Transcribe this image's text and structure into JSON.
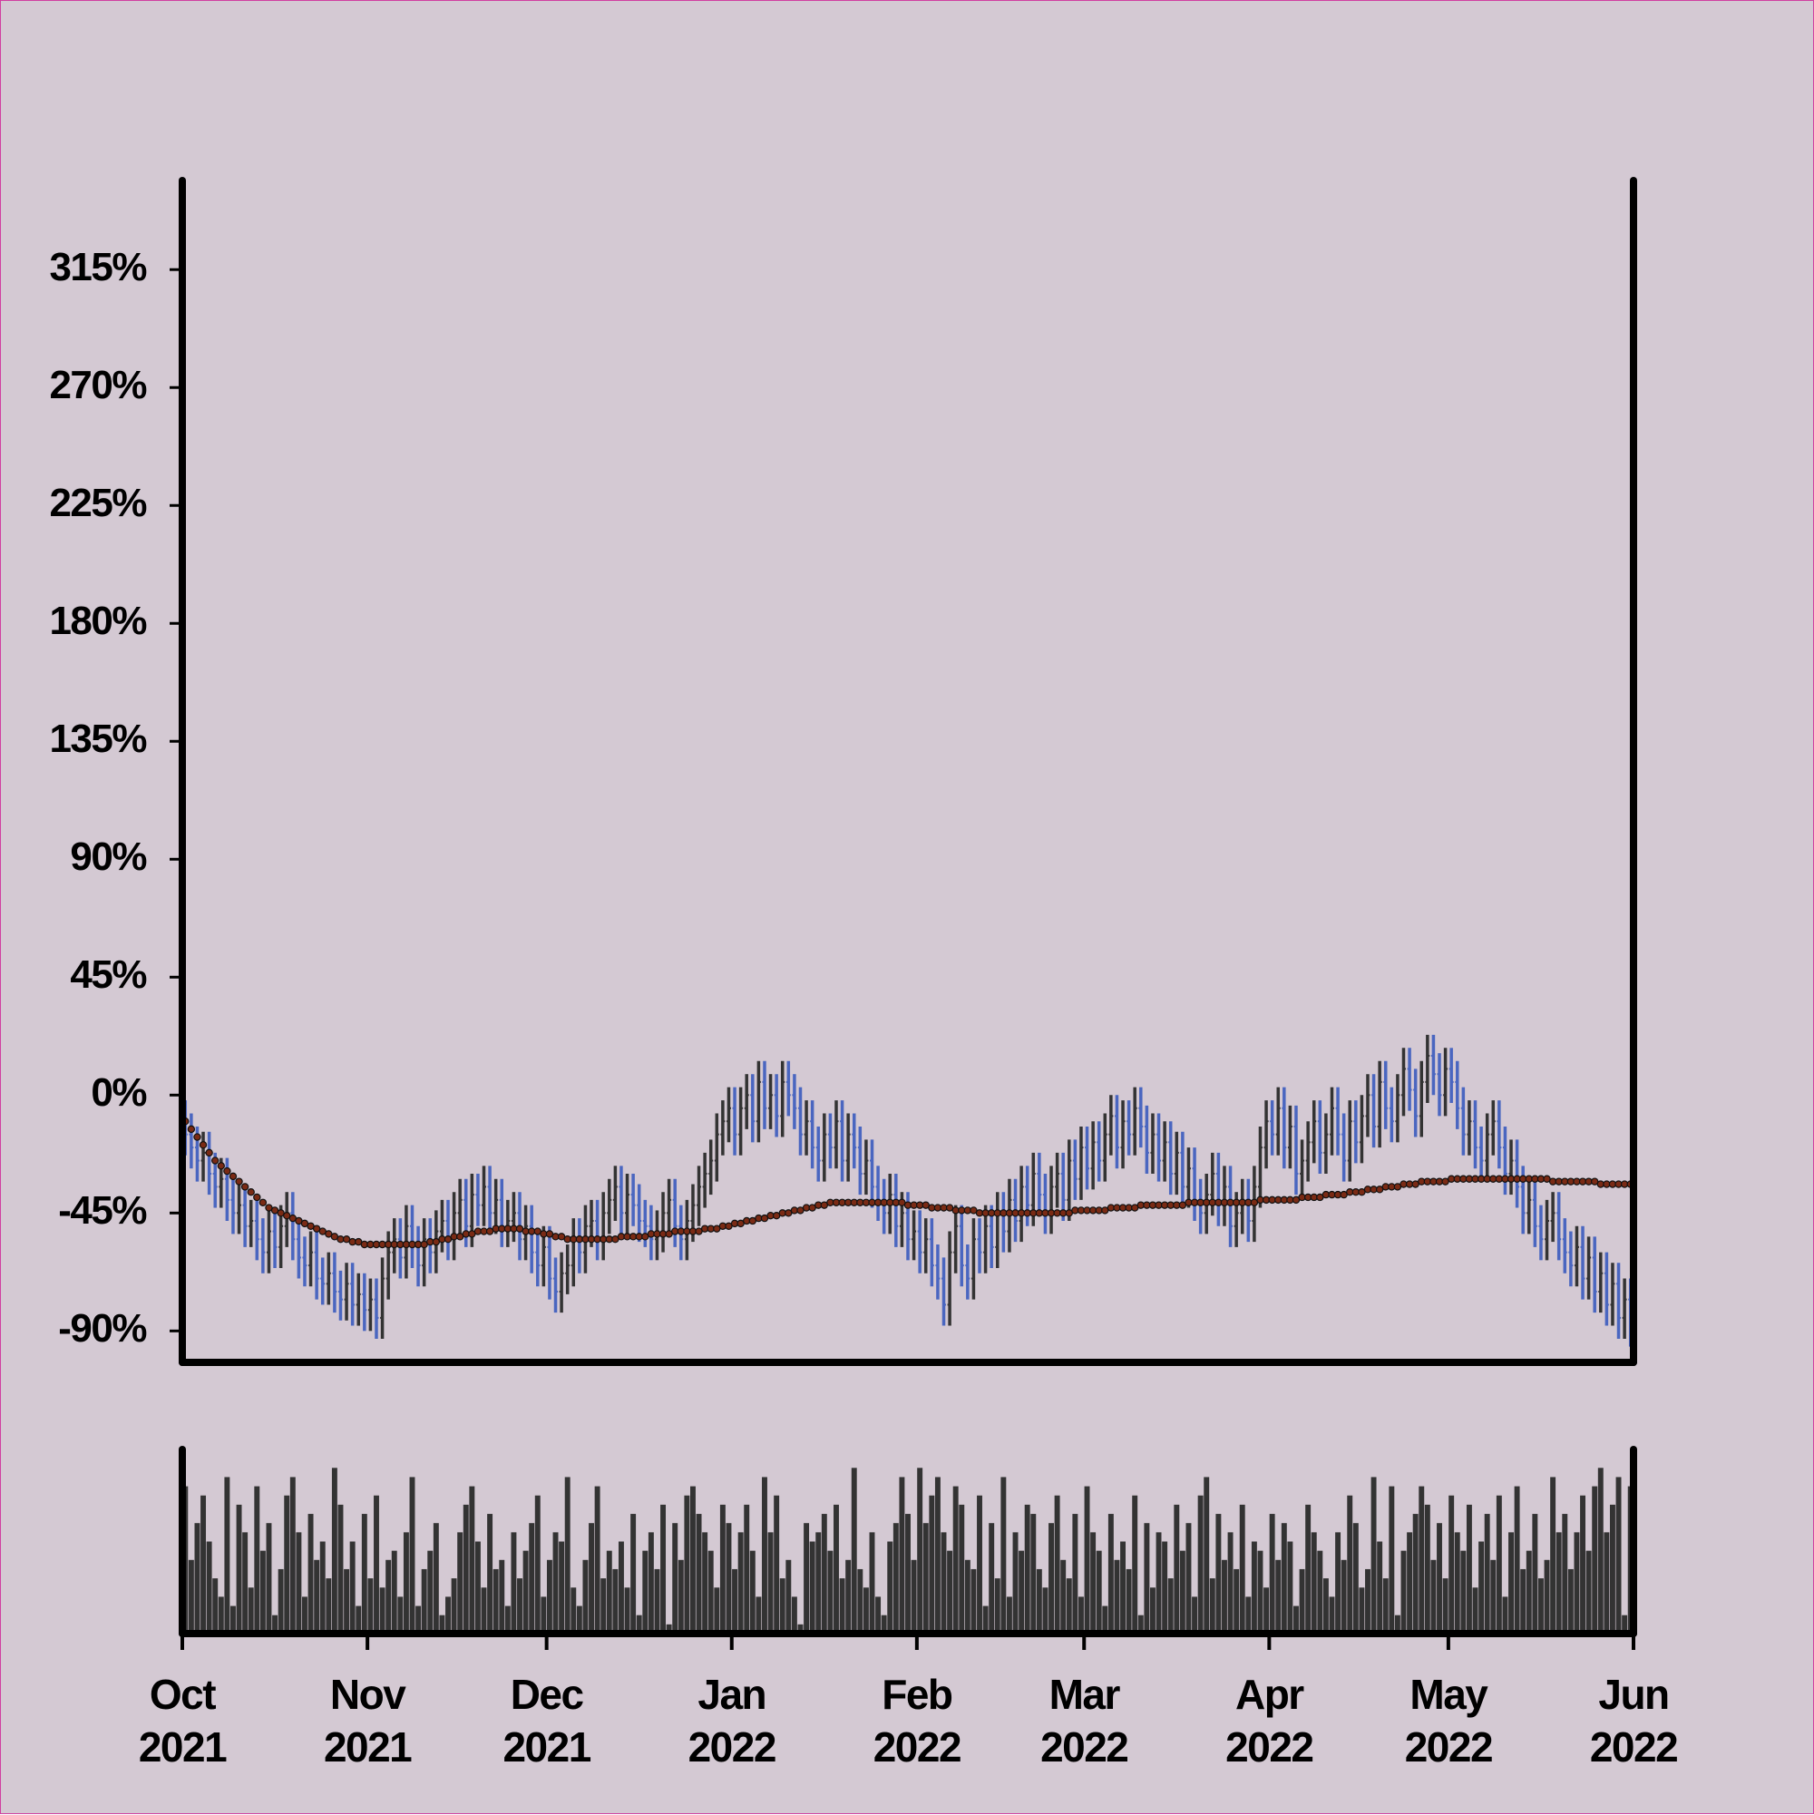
{
  "chart_data": {
    "type": "ohlc",
    "open": [
      -10,
      -15,
      -20,
      -25,
      -22,
      -30,
      -35,
      -32,
      -40,
      -45,
      -42,
      -50,
      -48,
      -55,
      -60,
      -52,
      -58,
      -50,
      -45,
      -55,
      -62,
      -65,
      -60,
      -70,
      -72,
      -68,
      -75,
      -78,
      -72,
      -80,
      -76,
      -82,
      -78,
      -85,
      -70,
      -60,
      -55,
      -62,
      -50,
      -58,
      -65,
      -55,
      -60,
      -52,
      -48,
      -55,
      -45,
      -40,
      -50,
      -38,
      -42,
      -35,
      -45,
      -40,
      -50,
      -48,
      -45,
      -55,
      -50,
      -60,
      -65,
      -58,
      -70,
      -75,
      -68,
      -65,
      -55,
      -60,
      -50,
      -48,
      -55,
      -45,
      -40,
      -35,
      -45,
      -38,
      -42,
      -48,
      -50,
      -55,
      -52,
      -45,
      -40,
      -50,
      -55,
      -48,
      -42,
      -35,
      -30,
      -25,
      -15,
      -10,
      -5,
      -15,
      -5,
      0,
      -10,
      5,
      -5,
      0,
      -8,
      5,
      0,
      -5,
      -15,
      -10,
      -20,
      -25,
      -15,
      -20,
      -10,
      -25,
      -15,
      -20,
      -30,
      -25,
      -35,
      -40,
      -45,
      -38,
      -50,
      -45,
      -55,
      -52,
      -60,
      -55,
      -65,
      -70,
      -80,
      -60,
      -50,
      -65,
      -70,
      -55,
      -60,
      -50,
      -58,
      -45,
      -52,
      -40,
      -48,
      -35,
      -42,
      -30,
      -38,
      -45,
      -35,
      -30,
      -40,
      -25,
      -32,
      -20,
      -28,
      -18,
      -25,
      -15,
      -8,
      -20,
      -10,
      -15,
      -5,
      -12,
      -22,
      -15,
      -25,
      -18,
      -30,
      -22,
      -35,
      -28,
      -40,
      -45,
      -38,
      -30,
      -42,
      -35,
      -50,
      -45,
      -40,
      -48,
      -35,
      -20,
      -10,
      -15,
      -5,
      -20,
      -12,
      -30,
      -25,
      -18,
      -10,
      -22,
      -15,
      -5,
      -15,
      -25,
      -10,
      -18,
      -8,
      0,
      -12,
      5,
      -5,
      -10,
      0,
      10,
      2,
      -8,
      5,
      15,
      8,
      0,
      10,
      5,
      -5,
      -15,
      -10,
      -20,
      -25,
      -15,
      -10,
      -20,
      -30,
      -25,
      -35,
      -45,
      -40,
      -50,
      -55,
      -48,
      -45,
      -55,
      -60,
      -65,
      -58,
      -70,
      -62,
      -75,
      -68,
      -80,
      -72,
      -85,
      -78
    ],
    "high": [
      -2,
      -7,
      -12,
      -14,
      -14,
      -22,
      -24,
      -24,
      -32,
      -34,
      -34,
      -40,
      -40,
      -47,
      -44,
      -44,
      -42,
      -37,
      -37,
      -47,
      -54,
      -52,
      -52,
      -62,
      -60,
      -60,
      -67,
      -64,
      -64,
      -68,
      -68,
      -70,
      -70,
      -62,
      -52,
      -47,
      -47,
      -42,
      -42,
      -50,
      -47,
      -47,
      -44,
      -40,
      -40,
      -37,
      -32,
      -32,
      -30,
      -30,
      -27,
      -27,
      -32,
      -32,
      -40,
      -37,
      -37,
      -42,
      -42,
      -52,
      -50,
      -50,
      -62,
      -60,
      -57,
      -47,
      -47,
      -42,
      -40,
      -40,
      -37,
      -32,
      -27,
      -27,
      -30,
      -30,
      -34,
      -40,
      -42,
      -44,
      -37,
      -32,
      -32,
      -42,
      -40,
      -34,
      -27,
      -22,
      -17,
      -7,
      -2,
      3,
      3,
      3,
      8,
      8,
      13,
      13,
      8,
      8,
      13,
      13,
      8,
      3,
      -2,
      -2,
      -12,
      -7,
      -7,
      -2,
      -2,
      -7,
      -7,
      -12,
      -17,
      -17,
      -27,
      -32,
      -30,
      -30,
      -37,
      -37,
      -44,
      -44,
      -47,
      -47,
      -57,
      -62,
      -52,
      -42,
      -42,
      -57,
      -47,
      -47,
      -42,
      -42,
      -37,
      -37,
      -32,
      -32,
      -27,
      -27,
      -22,
      -22,
      -30,
      -27,
      -22,
      -22,
      -17,
      -17,
      -12,
      -12,
      -10,
      -10,
      -7,
      0,
      0,
      -2,
      -2,
      3,
      3,
      -4,
      -7,
      -7,
      -10,
      -10,
      -14,
      -14,
      -20,
      -20,
      -32,
      -30,
      -22,
      -22,
      -27,
      -27,
      -37,
      -32,
      -32,
      -27,
      -12,
      -2,
      -2,
      3,
      3,
      -4,
      -4,
      -17,
      -10,
      -2,
      -2,
      -7,
      3,
      3,
      -7,
      -2,
      -2,
      0,
      8,
      8,
      13,
      13,
      3,
      8,
      18,
      18,
      10,
      13,
      23,
      23,
      16,
      18,
      18,
      13,
      3,
      -2,
      -2,
      -12,
      -7,
      -2,
      -2,
      -12,
      -17,
      -17,
      -27,
      -32,
      -32,
      -42,
      -40,
      -37,
      -37,
      -47,
      -52,
      -50,
      -50,
      -54,
      -54,
      -60,
      -60,
      -64,
      -64,
      -70,
      -70
    ],
    "low": [
      -23,
      -28,
      -33,
      -33,
      -38,
      -43,
      -43,
      -48,
      -53,
      -53,
      -58,
      -58,
      -63,
      -68,
      -68,
      -66,
      -66,
      -58,
      -63,
      -70,
      -73,
      -73,
      -78,
      -80,
      -80,
      -83,
      -86,
      -86,
      -88,
      -88,
      -90,
      -90,
      -93,
      -93,
      -78,
      -68,
      -70,
      -70,
      -66,
      -73,
      -73,
      -68,
      -68,
      -60,
      -63,
      -63,
      -53,
      -58,
      -58,
      -50,
      -50,
      -53,
      -53,
      -58,
      -58,
      -56,
      -63,
      -63,
      -68,
      -73,
      -73,
      -78,
      -83,
      -83,
      -76,
      -73,
      -68,
      -68,
      -58,
      -63,
      -63,
      -53,
      -48,
      -53,
      -53,
      -50,
      -56,
      -58,
      -63,
      -63,
      -60,
      -53,
      -58,
      -63,
      -63,
      -56,
      -50,
      -43,
      -38,
      -33,
      -23,
      -18,
      -23,
      -23,
      -13,
      -18,
      -18,
      -13,
      -13,
      -16,
      -16,
      -8,
      -13,
      -23,
      -23,
      -28,
      -33,
      -33,
      -28,
      -28,
      -33,
      -33,
      -28,
      -38,
      -38,
      -43,
      -48,
      -53,
      -53,
      -58,
      -58,
      -63,
      -63,
      -68,
      -68,
      -73,
      -78,
      -88,
      -88,
      -68,
      -73,
      -78,
      -78,
      -68,
      -68,
      -66,
      -66,
      -60,
      -60,
      -56,
      -56,
      -50,
      -50,
      -46,
      -53,
      -53,
      -43,
      -48,
      -48,
      -40,
      -40,
      -36,
      -36,
      -33,
      -33,
      -23,
      -28,
      -28,
      -23,
      -23,
      -20,
      -30,
      -30,
      -33,
      -33,
      -38,
      -38,
      -43,
      -43,
      -48,
      -53,
      -53,
      -46,
      -50,
      -50,
      -58,
      -58,
      -53,
      -56,
      -56,
      -43,
      -28,
      -23,
      -23,
      -28,
      -28,
      -38,
      -38,
      -33,
      -26,
      -30,
      -30,
      -23,
      -23,
      -33,
      -33,
      -26,
      -26,
      -16,
      -20,
      -20,
      -13,
      -18,
      -18,
      -8,
      -6,
      -16,
      -16,
      -3,
      0,
      -8,
      -8,
      -3,
      -13,
      -23,
      -23,
      -28,
      -33,
      -33,
      -23,
      -28,
      -38,
      -38,
      -43,
      -53,
      -53,
      -58,
      -63,
      -63,
      -56,
      -63,
      -68,
      -73,
      -73,
      -78,
      -78,
      -83,
      -83,
      -88,
      -88,
      -93,
      -93,
      -96
    ],
    "close": [
      -15,
      -20,
      -25,
      -22,
      -30,
      -35,
      -32,
      -40,
      -45,
      -42,
      -50,
      -48,
      -55,
      -60,
      -52,
      -58,
      -50,
      -45,
      -55,
      -62,
      -65,
      -60,
      -70,
      -72,
      -68,
      -75,
      -78,
      -72,
      -80,
      -76,
      -82,
      -78,
      -85,
      -70,
      -60,
      -55,
      -62,
      -50,
      -58,
      -65,
      -55,
      -60,
      -52,
      -48,
      -55,
      -45,
      -40,
      -50,
      -38,
      -42,
      -35,
      -45,
      -40,
      -50,
      -48,
      -45,
      -55,
      -50,
      -60,
      -65,
      -58,
      -70,
      -75,
      -68,
      -65,
      -55,
      -60,
      -50,
      -48,
      -55,
      -45,
      -40,
      -35,
      -45,
      -38,
      -42,
      -48,
      -50,
      -55,
      -52,
      -45,
      -40,
      -50,
      -55,
      -48,
      -42,
      -35,
      -30,
      -25,
      -15,
      -10,
      -5,
      -15,
      -5,
      0,
      -10,
      5,
      -5,
      0,
      -8,
      5,
      0,
      -5,
      -15,
      -10,
      -20,
      -25,
      -15,
      -20,
      -10,
      -25,
      -15,
      -20,
      -30,
      -25,
      -35,
      -40,
      -45,
      -38,
      -50,
      -45,
      -55,
      -52,
      -60,
      -55,
      -65,
      -70,
      -80,
      -60,
      -50,
      -65,
      -70,
      -55,
      -60,
      -50,
      -58,
      -45,
      -52,
      -40,
      -48,
      -35,
      -42,
      -30,
      -38,
      -45,
      -35,
      -30,
      -40,
      -25,
      -32,
      -20,
      -28,
      -18,
      -25,
      -15,
      -8,
      -20,
      -10,
      -15,
      -5,
      -12,
      -22,
      -15,
      -25,
      -18,
      -30,
      -22,
      -35,
      -28,
      -40,
      -45,
      -38,
      -30,
      -42,
      -35,
      -50,
      -45,
      -40,
      -48,
      -35,
      -20,
      -10,
      -15,
      -5,
      -20,
      -12,
      -30,
      -25,
      -18,
      -10,
      -22,
      -15,
      -5,
      -15,
      -25,
      -10,
      -18,
      -8,
      0,
      -12,
      5,
      -5,
      -10,
      0,
      10,
      2,
      -8,
      5,
      15,
      8,
      0,
      10,
      5,
      -5,
      -15,
      -10,
      -20,
      -25,
      -15,
      -10,
      -20,
      -30,
      -25,
      -35,
      -45,
      -40,
      -50,
      -55,
      -48,
      -45,
      -55,
      -60,
      -65,
      -58,
      -70,
      -62,
      -75,
      -68,
      -80,
      -72,
      -85,
      -78,
      -88
    ],
    "up_color": "#333333",
    "down_color": "#4a66c0",
    "ma": {
      "color": "#7a2a14",
      "values": [
        -10,
        -13,
        -16,
        -19,
        -22,
        -25,
        -27,
        -29,
        -31,
        -33,
        -35,
        -37,
        -39,
        -41,
        -43,
        -44,
        -45,
        -46,
        -47,
        -48,
        -49,
        -50,
        -51,
        -52,
        -53,
        -54,
        -55,
        -55,
        -56,
        -56,
        -57,
        -57,
        -57,
        -57,
        -57,
        -57,
        -57,
        -57,
        -57,
        -57,
        -57,
        -56,
        -56,
        -55,
        -55,
        -54,
        -54,
        -53,
        -53,
        -52,
        -52,
        -52,
        -51,
        -51,
        -51,
        -51,
        -51,
        -52,
        -52,
        -52,
        -53,
        -53,
        -54,
        -54,
        -55,
        -55,
        -55,
        -55,
        -55,
        -55,
        -55,
        -55,
        -55,
        -54,
        -54,
        -54,
        -54,
        -54,
        -53,
        -53,
        -53,
        -53,
        -52,
        -52,
        -52,
        -52,
        -52,
        -51,
        -51,
        -51,
        -50,
        -50,
        -49,
        -49,
        -48,
        -48,
        -47,
        -47,
        -46,
        -46,
        -45,
        -45,
        -44,
        -44,
        -43,
        -43,
        -42,
        -42,
        -41,
        -41,
        -41,
        -41,
        -41,
        -41,
        -41,
        -41,
        -41,
        -41,
        -41,
        -41,
        -41,
        -42,
        -42,
        -42,
        -42,
        -43,
        -43,
        -43,
        -43,
        -44,
        -44,
        -44,
        -44,
        -45,
        -45,
        -45,
        -45,
        -45,
        -45,
        -45,
        -45,
        -45,
        -45,
        -45,
        -45,
        -45,
        -45,
        -45,
        -45,
        -44,
        -44,
        -44,
        -44,
        -44,
        -44,
        -43,
        -43,
        -43,
        -43,
        -43,
        -42,
        -42,
        -42,
        -42,
        -42,
        -42,
        -42,
        -42,
        -41,
        -41,
        -41,
        -41,
        -41,
        -41,
        -41,
        -41,
        -41,
        -41,
        -41,
        -41,
        -40,
        -40,
        -40,
        -40,
        -40,
        -40,
        -40,
        -39,
        -39,
        -39,
        -39,
        -38,
        -38,
        -38,
        -38,
        -37,
        -37,
        -37,
        -36,
        -36,
        -36,
        -35,
        -35,
        -35,
        -34,
        -34,
        -34,
        -33,
        -33,
        -33,
        -33,
        -33,
        -32,
        -32,
        -32,
        -32,
        -32,
        -32,
        -32,
        -32,
        -32,
        -32,
        -32,
        -32,
        -32,
        -32,
        -32,
        -32,
        -32,
        -33,
        -33,
        -33,
        -33,
        -33,
        -33,
        -33,
        -33,
        -34,
        -34,
        -34,
        -34,
        -34,
        -34
      ]
    },
    "volume": {
      "color": "#333333",
      "ylim": [
        0,
        100
      ],
      "values": [
        80,
        40,
        60,
        75,
        50,
        30,
        20,
        85,
        15,
        70,
        55,
        25,
        80,
        45,
        60,
        10,
        35,
        75,
        85,
        55,
        20,
        65,
        40,
        50,
        30,
        90,
        70,
        35,
        50,
        15,
        65,
        30,
        75,
        25,
        40,
        45,
        20,
        55,
        85,
        15,
        35,
        45,
        60,
        10,
        20,
        30,
        55,
        70,
        80,
        50,
        25,
        65,
        35,
        40,
        15,
        55,
        30,
        45,
        60,
        75,
        20,
        40,
        55,
        50,
        85,
        25,
        15,
        40,
        60,
        80,
        30,
        45,
        35,
        50,
        25,
        65,
        10,
        45,
        55,
        35,
        70,
        5,
        60,
        40,
        75,
        80,
        65,
        55,
        45,
        25,
        70,
        60,
        35,
        55,
        70,
        45,
        20,
        85,
        55,
        75,
        30,
        40,
        20,
        5,
        60,
        50,
        55,
        65,
        45,
        70,
        30,
        40,
        90,
        35,
        25,
        55,
        20,
        10,
        50,
        60,
        85,
        65,
        40,
        90,
        60,
        75,
        85,
        55,
        45,
        80,
        70,
        40,
        35,
        75,
        15,
        60,
        30,
        85,
        20,
        55,
        45,
        70,
        65,
        35,
        25,
        60,
        75,
        40,
        30,
        65,
        20,
        80,
        55,
        45,
        15,
        65,
        40,
        50,
        35,
        75,
        10,
        60,
        25,
        55,
        50,
        30,
        70,
        45,
        60,
        20,
        75,
        85,
        30,
        65,
        40,
        55,
        35,
        70,
        20,
        50,
        45,
        25,
        65,
        40,
        60,
        50,
        15,
        35,
        70,
        55,
        45,
        30,
        20,
        55,
        40,
        75,
        60,
        25,
        35,
        85,
        50,
        30,
        80,
        10,
        45,
        55,
        65,
        80,
        70,
        40,
        60,
        30,
        75,
        55,
        45,
        70,
        25,
        50,
        65,
        40,
        75,
        20,
        55,
        80,
        35,
        45,
        65,
        30,
        40,
        85,
        55,
        65,
        35,
        55,
        75,
        45,
        80,
        90,
        55,
        70,
        85,
        10,
        80
      ]
    },
    "ylim": [
      -102,
      349
    ],
    "yticks": [
      {
        "value": -90,
        "label": "-90%"
      },
      {
        "value": -45,
        "label": "-45%"
      },
      {
        "value": 0,
        "label": "0%"
      },
      {
        "value": 45,
        "label": "45%"
      },
      {
        "value": 90,
        "label": "90%"
      },
      {
        "value": 135,
        "label": "135%"
      },
      {
        "value": 180,
        "label": "180%"
      },
      {
        "value": 225,
        "label": "225%"
      },
      {
        "value": 270,
        "label": "270%"
      },
      {
        "value": 315,
        "label": "315%"
      }
    ],
    "xlim": [
      0,
      243
    ],
    "xticks": [
      {
        "value": 0,
        "label": "Oct\n2021"
      },
      {
        "value": 31,
        "label": "Nov\n2021"
      },
      {
        "value": 61,
        "label": "Dec\n2021"
      },
      {
        "value": 92,
        "label": "Jan\n2022"
      },
      {
        "value": 123,
        "label": "Feb\n2022"
      },
      {
        "value": 151,
        "label": "Mar\n2022"
      },
      {
        "value": 182,
        "label": "Apr\n2022"
      },
      {
        "value": 212,
        "label": "May\n2022"
      },
      {
        "value": 243,
        "label": "Jun\n2022"
      }
    ]
  }
}
